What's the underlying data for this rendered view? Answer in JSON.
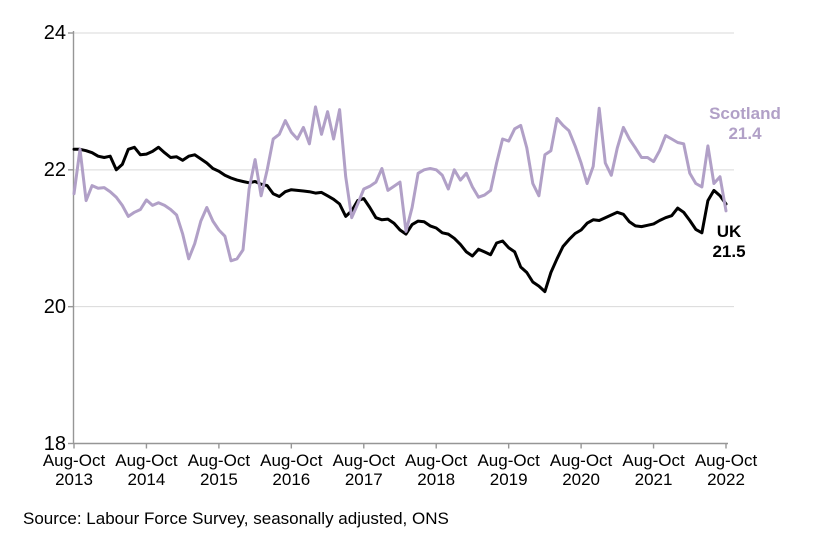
{
  "chart_data": {
    "type": "line",
    "title": "",
    "x_axis": {
      "period_label": "Aug-Oct",
      "tick_years": [
        "2013",
        "2014",
        "2015",
        "2016",
        "2017",
        "2018",
        "2019",
        "2020",
        "2021",
        "2022"
      ],
      "unit": "rolling 3-month periods, monthly from Aug-Oct 2013 to Aug-Oct 2022",
      "points_count": 109
    },
    "y_axis": {
      "ticks": [
        18,
        20,
        22,
        24
      ],
      "range": [
        18,
        24
      ],
      "label": ""
    },
    "gridlines": "horizontal",
    "legend_position": "end-of-line labels",
    "series": [
      {
        "name": "Scotland",
        "color": "#b1a0c7",
        "end_label": "Scotland",
        "end_value_label": "21.4",
        "values": [
          21.65,
          22.3,
          21.55,
          21.77,
          21.73,
          21.74,
          21.68,
          21.6,
          21.48,
          21.32,
          21.38,
          21.42,
          21.56,
          21.48,
          21.52,
          21.48,
          21.42,
          21.34,
          21.06,
          20.7,
          20.92,
          21.25,
          21.45,
          21.25,
          21.12,
          21.03,
          20.67,
          20.7,
          20.83,
          21.72,
          22.15,
          21.62,
          22.0,
          22.45,
          22.52,
          22.72,
          22.55,
          22.45,
          22.62,
          22.38,
          22.92,
          22.52,
          22.85,
          22.45,
          22.88,
          21.9,
          21.3,
          21.5,
          21.72,
          21.76,
          21.82,
          22.02,
          21.7,
          21.76,
          21.82,
          21.1,
          21.45,
          21.95,
          22.0,
          22.02,
          22.0,
          21.92,
          21.72,
          22.0,
          21.85,
          21.95,
          21.75,
          21.6,
          21.63,
          21.7,
          22.1,
          22.45,
          22.42,
          22.6,
          22.65,
          22.32,
          21.8,
          21.62,
          22.22,
          22.28,
          22.75,
          22.65,
          22.57,
          22.35,
          22.1,
          21.8,
          22.05,
          22.9,
          22.1,
          21.92,
          22.32,
          22.62,
          22.45,
          22.32,
          22.18,
          22.18,
          22.12,
          22.28,
          22.5,
          22.45,
          22.4,
          22.38,
          21.95,
          21.8,
          21.75,
          22.35,
          21.8,
          21.9,
          21.4
        ]
      },
      {
        "name": "UK",
        "color": "#000000",
        "end_label": "UK",
        "end_value_label": "21.5",
        "values": [
          22.3,
          22.3,
          22.28,
          22.25,
          22.2,
          22.18,
          22.2,
          22.0,
          22.08,
          22.3,
          22.33,
          22.22,
          22.23,
          22.27,
          22.33,
          22.25,
          22.18,
          22.19,
          22.14,
          22.2,
          22.22,
          22.16,
          22.1,
          22.02,
          21.98,
          21.92,
          21.88,
          21.85,
          21.83,
          21.81,
          21.83,
          21.79,
          21.77,
          21.65,
          21.61,
          21.68,
          21.71,
          21.7,
          21.69,
          21.68,
          21.66,
          21.67,
          21.62,
          21.57,
          21.5,
          21.32,
          21.4,
          21.55,
          21.58,
          21.45,
          21.3,
          21.27,
          21.28,
          21.22,
          21.12,
          21.06,
          21.2,
          21.25,
          21.24,
          21.18,
          21.15,
          21.08,
          21.06,
          21.0,
          20.91,
          20.8,
          20.74,
          20.84,
          20.8,
          20.76,
          20.93,
          20.96,
          20.86,
          20.8,
          20.58,
          20.5,
          20.36,
          20.3,
          20.22,
          20.5,
          20.7,
          20.88,
          20.98,
          21.07,
          21.12,
          21.22,
          21.27,
          21.26,
          21.3,
          21.34,
          21.38,
          21.35,
          21.24,
          21.18,
          21.17,
          21.19,
          21.21,
          21.26,
          21.3,
          21.33,
          21.44,
          21.38,
          21.26,
          21.13,
          21.08,
          21.55,
          21.7,
          21.62,
          21.5
        ]
      }
    ]
  },
  "colors": {
    "scotland_line": "#b1a0c7",
    "uk_line": "#000000",
    "gridline": "#d9d9d9",
    "axis": "#969696",
    "text": "#000000",
    "background": "#ffffff"
  },
  "source_note": "Source: Labour Force Survey, seasonally adjusted, ONS"
}
